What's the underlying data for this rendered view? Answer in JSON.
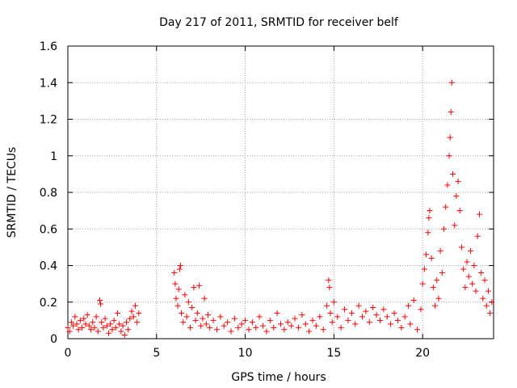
{
  "chart_data": {
    "type": "scatter",
    "title": "Day 217 of 2011, SRMTID for receiver belf",
    "xlabel": "GPS time / hours",
    "ylabel": "SRMTID / TECUs",
    "xlim": [
      0,
      24
    ],
    "ylim": [
      0,
      1.6
    ],
    "xticks": [
      0,
      5,
      10,
      15,
      20
    ],
    "xtick_labels": [
      "0",
      "5",
      "10",
      "15",
      "20"
    ],
    "yticks": [
      0,
      0.2,
      0.4,
      0.6,
      0.8,
      1,
      1.2,
      1.4,
      1.6
    ],
    "ytick_labels": [
      "0",
      "0.2",
      "0.4",
      "0.6",
      "0.8",
      "1",
      "1.2",
      "1.4",
      "1.6"
    ],
    "grid": true,
    "marker": "+",
    "series": [
      {
        "name": "SRMTID",
        "color": "#ff0000",
        "points": [
          [
            0.0,
            0.06
          ],
          [
            0.1,
            0.04
          ],
          [
            0.2,
            0.09
          ],
          [
            0.3,
            0.07
          ],
          [
            0.4,
            0.12
          ],
          [
            0.5,
            0.08
          ],
          [
            0.6,
            0.05
          ],
          [
            0.7,
            0.1
          ],
          [
            0.8,
            0.06
          ],
          [
            0.9,
            0.11
          ],
          [
            1.0,
            0.08
          ],
          [
            1.1,
            0.13
          ],
          [
            1.2,
            0.07
          ],
          [
            1.3,
            0.05
          ],
          [
            1.4,
            0.09
          ],
          [
            1.5,
            0.06
          ],
          [
            1.6,
            0.12
          ],
          [
            1.7,
            0.04
          ],
          [
            1.8,
            0.21
          ],
          [
            1.85,
            0.19
          ],
          [
            1.9,
            0.09
          ],
          [
            2.0,
            0.06
          ],
          [
            2.1,
            0.11
          ],
          [
            2.2,
            0.07
          ],
          [
            2.3,
            0.03
          ],
          [
            2.4,
            0.08
          ],
          [
            2.5,
            0.05
          ],
          [
            2.6,
            0.1
          ],
          [
            2.7,
            0.06
          ],
          [
            2.8,
            0.14
          ],
          [
            2.9,
            0.08
          ],
          [
            3.0,
            0.04
          ],
          [
            3.1,
            0.07
          ],
          [
            3.2,
            0.02
          ],
          [
            3.3,
            0.09
          ],
          [
            3.4,
            0.05
          ],
          [
            3.5,
            0.11
          ],
          [
            3.6,
            0.15
          ],
          [
            3.7,
            0.12
          ],
          [
            3.8,
            0.18
          ],
          [
            3.9,
            0.09
          ],
          [
            4.0,
            0.14
          ],
          [
            6.0,
            0.36
          ],
          [
            6.05,
            0.3
          ],
          [
            6.1,
            0.22
          ],
          [
            6.2,
            0.18
          ],
          [
            6.25,
            0.27
          ],
          [
            6.3,
            0.38
          ],
          [
            6.35,
            0.4
          ],
          [
            6.4,
            0.14
          ],
          [
            6.5,
            0.09
          ],
          [
            6.6,
            0.24
          ],
          [
            6.7,
            0.12
          ],
          [
            6.8,
            0.2
          ],
          [
            6.9,
            0.06
          ],
          [
            7.0,
            0.17
          ],
          [
            7.1,
            0.28
          ],
          [
            7.2,
            0.1
          ],
          [
            7.3,
            0.14
          ],
          [
            7.4,
            0.29
          ],
          [
            7.5,
            0.07
          ],
          [
            7.6,
            0.11
          ],
          [
            7.7,
            0.22
          ],
          [
            7.8,
            0.08
          ],
          [
            7.9,
            0.13
          ],
          [
            8.0,
            0.06
          ],
          [
            8.2,
            0.1
          ],
          [
            8.4,
            0.05
          ],
          [
            8.6,
            0.12
          ],
          [
            8.8,
            0.07
          ],
          [
            9.0,
            0.09
          ],
          [
            9.2,
            0.04
          ],
          [
            9.4,
            0.11
          ],
          [
            9.6,
            0.06
          ],
          [
            9.8,
            0.08
          ],
          [
            10.0,
            0.1
          ],
          [
            10.2,
            0.05
          ],
          [
            10.4,
            0.09
          ],
          [
            10.6,
            0.06
          ],
          [
            10.8,
            0.12
          ],
          [
            11.0,
            0.07
          ],
          [
            11.2,
            0.04
          ],
          [
            11.4,
            0.1
          ],
          [
            11.6,
            0.06
          ],
          [
            11.8,
            0.14
          ],
          [
            12.0,
            0.08
          ],
          [
            12.2,
            0.05
          ],
          [
            12.4,
            0.09
          ],
          [
            12.6,
            0.07
          ],
          [
            12.8,
            0.11
          ],
          [
            13.0,
            0.06
          ],
          [
            13.2,
            0.13
          ],
          [
            13.4,
            0.08
          ],
          [
            13.6,
            0.04
          ],
          [
            13.8,
            0.1
          ],
          [
            14.0,
            0.07
          ],
          [
            14.2,
            0.12
          ],
          [
            14.4,
            0.05
          ],
          [
            14.6,
            0.18
          ],
          [
            14.7,
            0.32
          ],
          [
            14.75,
            0.28
          ],
          [
            14.8,
            0.14
          ],
          [
            14.9,
            0.09
          ],
          [
            15.0,
            0.2
          ],
          [
            15.2,
            0.12
          ],
          [
            15.4,
            0.06
          ],
          [
            15.6,
            0.16
          ],
          [
            15.8,
            0.1
          ],
          [
            16.0,
            0.14
          ],
          [
            16.2,
            0.08
          ],
          [
            16.4,
            0.18
          ],
          [
            16.6,
            0.12
          ],
          [
            16.8,
            0.15
          ],
          [
            17.0,
            0.09
          ],
          [
            17.2,
            0.17
          ],
          [
            17.4,
            0.13
          ],
          [
            17.6,
            0.1
          ],
          [
            17.8,
            0.16
          ],
          [
            18.0,
            0.12
          ],
          [
            18.2,
            0.08
          ],
          [
            18.4,
            0.14
          ],
          [
            18.6,
            0.1
          ],
          [
            18.8,
            0.06
          ],
          [
            19.0,
            0.12
          ],
          [
            19.2,
            0.18
          ],
          [
            19.3,
            0.08
          ],
          [
            19.5,
            0.21
          ],
          [
            19.7,
            0.05
          ],
          [
            19.9,
            0.16
          ],
          [
            20.0,
            0.3
          ],
          [
            20.1,
            0.38
          ],
          [
            20.2,
            0.46
          ],
          [
            20.3,
            0.58
          ],
          [
            20.35,
            0.66
          ],
          [
            20.4,
            0.7
          ],
          [
            20.5,
            0.44
          ],
          [
            20.6,
            0.28
          ],
          [
            20.7,
            0.18
          ],
          [
            20.8,
            0.32
          ],
          [
            20.9,
            0.22
          ],
          [
            21.0,
            0.48
          ],
          [
            21.1,
            0.36
          ],
          [
            21.2,
            0.6
          ],
          [
            21.3,
            0.72
          ],
          [
            21.4,
            0.84
          ],
          [
            21.5,
            1.0
          ],
          [
            21.55,
            1.1
          ],
          [
            21.6,
            1.24
          ],
          [
            21.65,
            1.4
          ],
          [
            21.7,
            0.9
          ],
          [
            21.8,
            0.62
          ],
          [
            21.9,
            0.78
          ],
          [
            22.0,
            0.86
          ],
          [
            22.1,
            0.7
          ],
          [
            22.2,
            0.5
          ],
          [
            22.3,
            0.38
          ],
          [
            22.4,
            0.28
          ],
          [
            22.5,
            0.42
          ],
          [
            22.6,
            0.34
          ],
          [
            22.7,
            0.48
          ],
          [
            22.8,
            0.3
          ],
          [
            22.9,
            0.4
          ],
          [
            23.0,
            0.26
          ],
          [
            23.1,
            0.56
          ],
          [
            23.2,
            0.68
          ],
          [
            23.3,
            0.36
          ],
          [
            23.4,
            0.22
          ],
          [
            23.5,
            0.32
          ],
          [
            23.6,
            0.18
          ],
          [
            23.7,
            0.26
          ],
          [
            23.8,
            0.14
          ],
          [
            23.9,
            0.2
          ]
        ]
      }
    ]
  }
}
